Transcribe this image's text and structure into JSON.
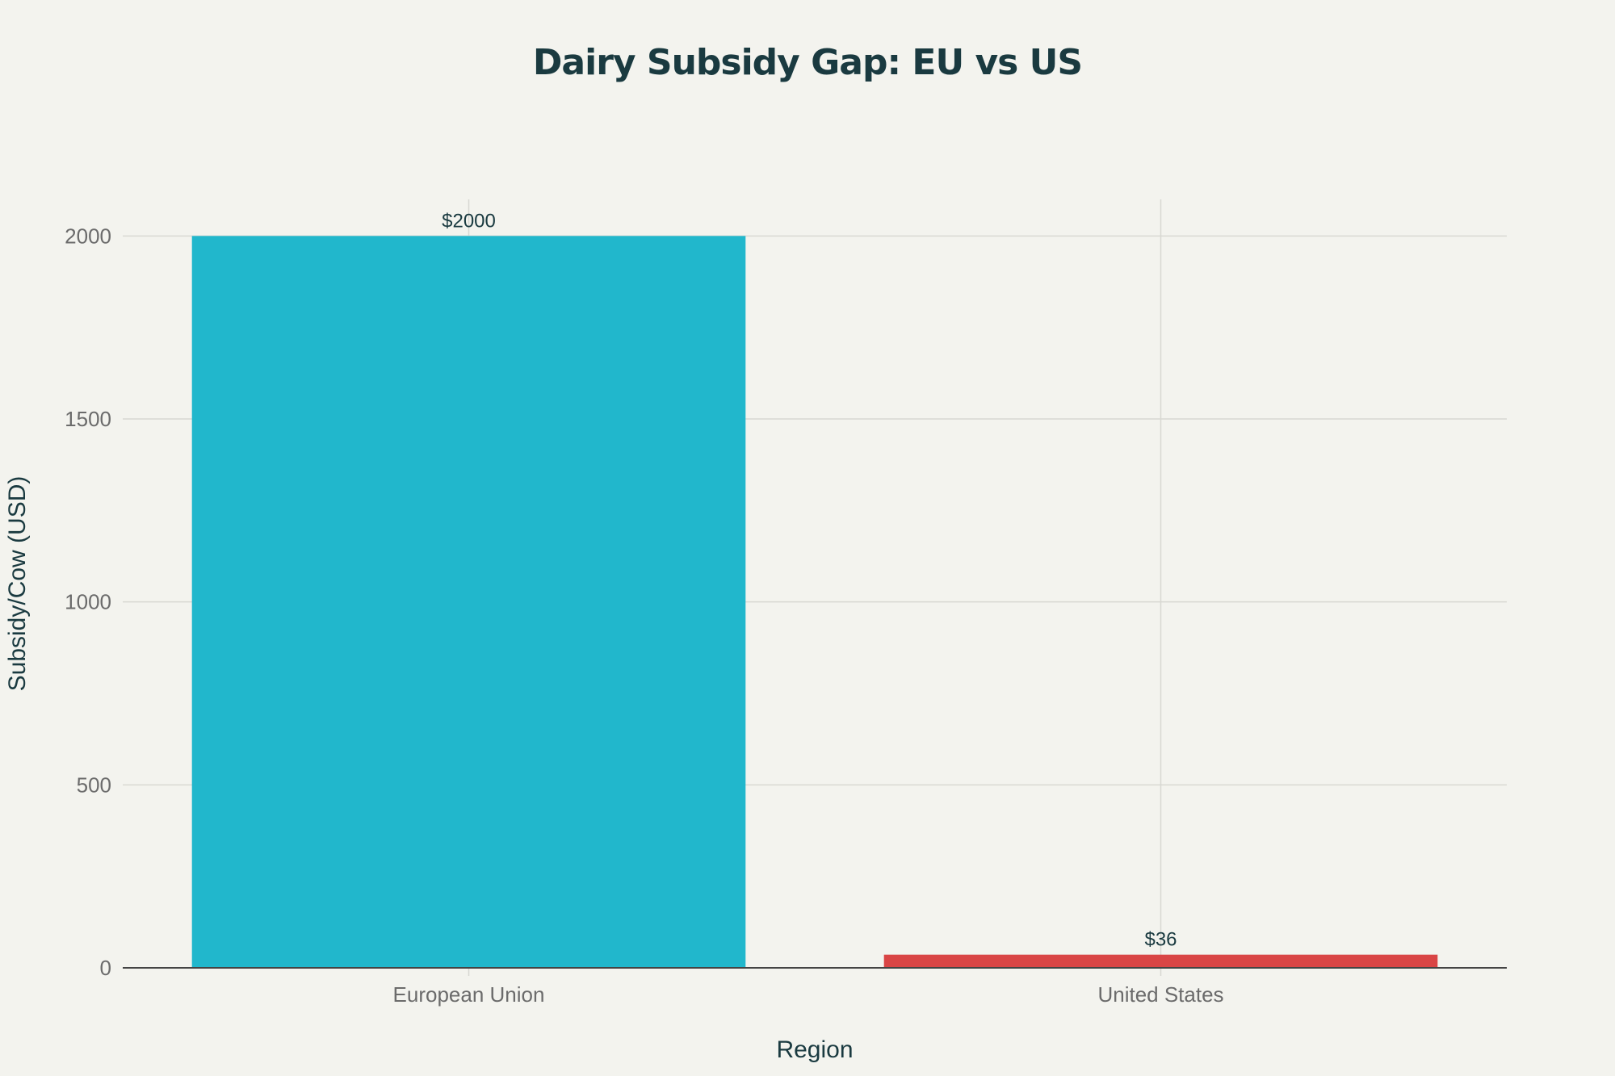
{
  "colors": {
    "background": "#f3f3ee",
    "grid": "#d8d8d2",
    "axis": "#444444",
    "title": "#1a3a40"
  },
  "chart_data": {
    "type": "bar",
    "title": "Dairy Subsidy Gap: EU vs US",
    "xlabel": "Region",
    "ylabel": "Subsidy/Cow (USD)",
    "categories": [
      "European Union",
      "United States"
    ],
    "values": [
      2000,
      36
    ],
    "data_labels": [
      "$2000",
      "$36"
    ],
    "bar_colors": [
      "#21b7cc",
      "#d94545"
    ],
    "ylim": [
      0,
      2100
    ],
    "yticks": [
      0,
      500,
      1000,
      1500,
      2000
    ],
    "grid": true,
    "legend": "none"
  }
}
